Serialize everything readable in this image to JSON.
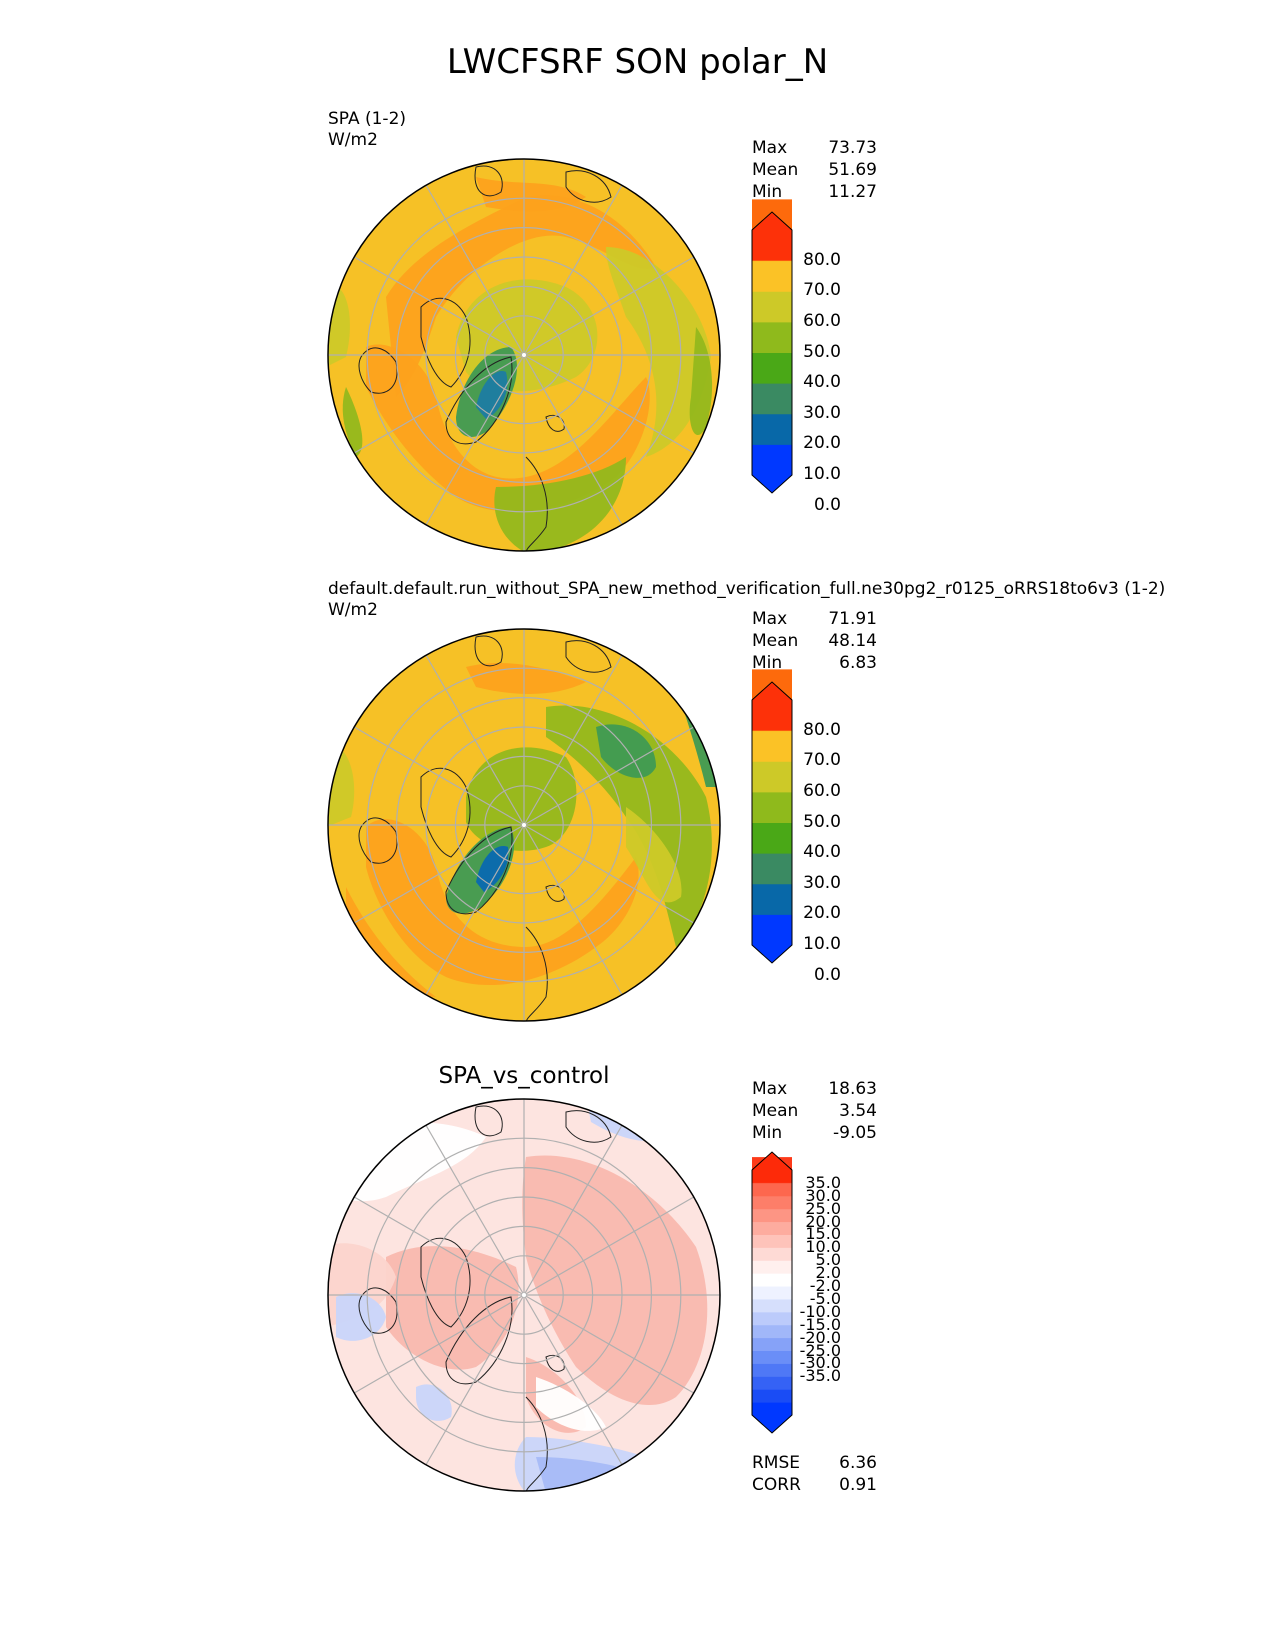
{
  "title": "LWCFSRF SON polar_N",
  "panels": [
    {
      "id": "test",
      "label_line1": "SPA (1-2)",
      "label_line2": "W/m2",
      "center_title": "",
      "stats": [
        {
          "name": "Max",
          "value": "73.73"
        },
        {
          "name": "Mean",
          "value": "51.69"
        },
        {
          "name": "Min",
          "value": "11.27"
        }
      ],
      "colorbar": {
        "colors": [
          "#0038ff",
          "#0868a8",
          "#3a8a62",
          "#4aa817",
          "#8fba1c",
          "#cdc928",
          "#fbc226",
          "#fd9a14",
          "#fd6a0c",
          "#fd3109"
        ],
        "labels": [
          "80.0",
          "70.0",
          "60.0",
          "50.0",
          "40.0",
          "30.0",
          "20.0",
          "10.0",
          "0.0"
        ]
      },
      "base_color": "#f6c126",
      "palette": {
        "low_blue": "#1d7ca2",
        "green": "#3f9a53",
        "yellowgreen": "#93b81c",
        "olive": "#cdc928",
        "yellow": "#f6c126",
        "orange": "#fda21c"
      }
    },
    {
      "id": "ref",
      "label_line1": "default.default.run_without_SPA_new_method_verification_full.ne30pg2_r0125_oRRS18to6v3 (1-2)",
      "label_line2": "W/m2",
      "center_title": "",
      "stats": [
        {
          "name": "Max",
          "value": "71.91"
        },
        {
          "name": "Mean",
          "value": "48.14"
        },
        {
          "name": "Min",
          "value": "6.83"
        }
      ],
      "colorbar": {
        "colors": [
          "#0038ff",
          "#0868a8",
          "#3a8a62",
          "#4aa817",
          "#8fba1c",
          "#cdc928",
          "#fbc226",
          "#fd9a14",
          "#fd6a0c",
          "#fd3109"
        ],
        "labels": [
          "80.0",
          "70.0",
          "60.0",
          "50.0",
          "40.0",
          "30.0",
          "20.0",
          "10.0",
          "0.0"
        ]
      },
      "base_color": "#f6c126",
      "palette": {
        "low_blue": "#0a69b0",
        "green": "#3f9a53",
        "yellowgreen": "#93b81c",
        "olive": "#cdc928",
        "yellow": "#f6c126",
        "orange": "#fda21c"
      }
    },
    {
      "id": "diff",
      "label_line1": "",
      "label_line2": "",
      "center_title": "SPA_vs_control",
      "stats": [
        {
          "name": "Max",
          "value": "18.63"
        },
        {
          "name": "Mean",
          "value": "3.54"
        },
        {
          "name": "Min",
          "value": "-9.05"
        }
      ],
      "extra_stats": [
        {
          "name": "RMSE",
          "value": "6.36"
        },
        {
          "name": "CORR",
          "value": "0.91"
        }
      ],
      "colorbar": {
        "colors": [
          "#0038ff",
          "#1a4cf5",
          "#3562f5",
          "#4f78f6",
          "#6a8ef7",
          "#86a2f8",
          "#a1b7f9",
          "#bccbfb",
          "#d6dffc",
          "#eef2ff",
          "#ffffff",
          "#fff0ee",
          "#fedad5",
          "#fec3ba",
          "#fdac9f",
          "#fd9584",
          "#fd7e69",
          "#fd674e",
          "#fd5033",
          "#fd3a19",
          "#fd2a09"
        ],
        "labels": [
          "35.0",
          "30.0",
          "25.0",
          "20.0",
          "15.0",
          "10.0",
          "5.0",
          "2.0",
          "-2.0",
          "-5.0",
          "-10.0",
          "-15.0",
          "-20.0",
          "-25.0",
          "-30.0",
          "-35.0"
        ]
      },
      "base_color": "#fde4e0",
      "palette": {
        "pink": "#f9b8ae",
        "lightpink": "#fcd4cc",
        "white": "#ffffff",
        "lightblue": "#c9d5fa",
        "blue": "#a7bbf7"
      }
    }
  ]
}
